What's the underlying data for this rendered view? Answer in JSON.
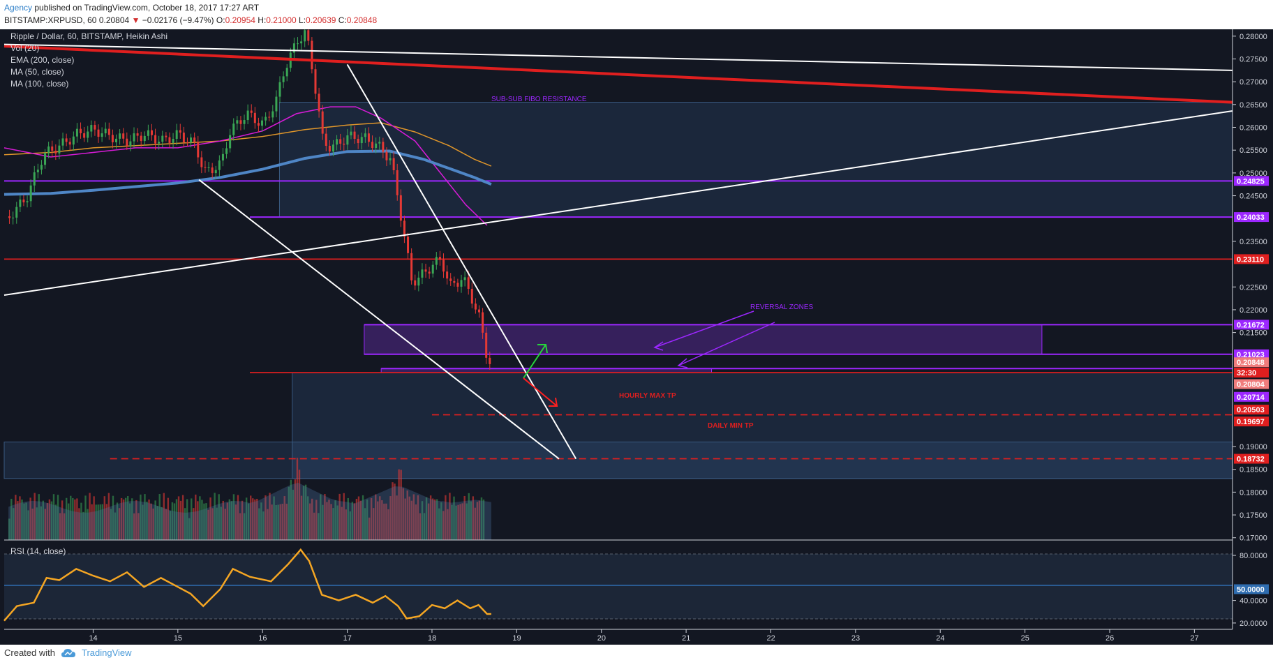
{
  "header": {
    "author": "Agency",
    "published": " published on TradingView.com, October 18, 2017 17:27 ART",
    "symbol": "BITSTAMP:XRPUSD, 60",
    "last": "0.20804",
    "change_arrow": "▼",
    "change": "−0.02176 (−9.47%)",
    "open_label": "O:",
    "open": "0.20954",
    "high_label": "H:",
    "high": "0.21000",
    "low_label": "L:",
    "low": "0.20639",
    "close_label": "C:",
    "close": "0.20848"
  },
  "legend": {
    "title": "Ripple / Dollar, 60, BITSTAMP, Heikin Ashi",
    "vol": "Vol (20)",
    "ema": "EMA (200, close)",
    "ma50": "MA (50, close)",
    "ma100": "MA (100, close)",
    "rsi": "RSI (14, close)"
  },
  "annotations": {
    "fibo": "SUB-SUB FIBO RESISTANCE",
    "reversal": "REVERSAL ZONES",
    "hourly": "HOURLY MAX TP",
    "daily": "DAILY MIN TP"
  },
  "footer": {
    "created": "Created with",
    "brand": "TradingView",
    "tv_icon": "tradingview-cloud-icon"
  },
  "colors": {
    "background": "#131722",
    "purple": "#9c27ff",
    "red": "#e01f1f",
    "white": "#ffffff",
    "ema": "#4f86c6",
    "ma50": "#d81bd8",
    "ma100": "#e0962a",
    "rsi": "#f5a623",
    "up": "#3aa655",
    "down": "#e53935"
  },
  "chart_data": {
    "type": "candlestick",
    "symbol": "XRPUSD",
    "exchange": "BITSTAMP",
    "timeframe": "60",
    "xlabels": [
      "14",
      "15",
      "16",
      "17",
      "18",
      "19",
      "20",
      "21",
      "22",
      "23",
      "24",
      "25",
      "26",
      "27"
    ],
    "price_ticks": [
      "0.28000",
      "0.27500",
      "0.27000",
      "0.26500",
      "0.26000",
      "0.25500",
      "0.25000",
      "0.24500",
      "0.23500",
      "0.22500",
      "0.22000",
      "0.21500",
      "0.19000",
      "0.18500",
      "0.18000",
      "0.17500",
      "0.17000"
    ],
    "price_range": [
      0.1695,
      0.2815
    ],
    "rsi_ticks": [
      "80.0000",
      "40.0000",
      "20.0000"
    ],
    "rsi_range": [
      15,
      93
    ],
    "rsi_mid_label": "50.0000",
    "price_labels": [
      {
        "value": 0.24825,
        "text": "0.24825",
        "color": "purple"
      },
      {
        "value": 0.24033,
        "text": "0.24033",
        "color": "purple"
      },
      {
        "value": 0.2311,
        "text": "0.23110",
        "color": "red"
      },
      {
        "value": 0.21672,
        "text": "0.21672",
        "color": "purple"
      },
      {
        "value": 0.21023,
        "text": "0.21023",
        "color": "purple"
      },
      {
        "value": 0.20848,
        "text": "0.20848",
        "color": "salmon"
      },
      {
        "value": 0.2062,
        "text": "32:30",
        "color": "red"
      },
      {
        "value": 0.20804,
        "text": "0.20804",
        "color": "salmon",
        "slot": 0.2037
      },
      {
        "value": 0.20714,
        "text": "0.20714",
        "color": "purple",
        "slot": 0.2009
      },
      {
        "value": 0.20503,
        "text": "0.20503",
        "color": "red",
        "slot": 0.1981
      },
      {
        "value": 0.19697,
        "text": "0.19697",
        "color": "red",
        "slot": 0.1955
      },
      {
        "value": 0.18732,
        "text": "0.18732",
        "color": "red"
      }
    ],
    "horizontal_levels": [
      {
        "value": 0.24825,
        "color": "purple",
        "from_day": 12.95
      },
      {
        "value": 0.24033,
        "color": "purple",
        "from_day": 15.85
      },
      {
        "value": 0.2311,
        "color": "red",
        "from_day": 12.95
      },
      {
        "value": 0.21672,
        "color": "purple",
        "from_day": 17.2
      },
      {
        "value": 0.21023,
        "color": "purple",
        "from_day": 17.2
      },
      {
        "value": 0.2071,
        "color": "purple",
        "from_day": 17.4
      },
      {
        "value": 0.2062,
        "color": "red",
        "from_day": 15.85
      },
      {
        "value": 0.19697,
        "color": "red_dashed",
        "from_day": 18.0
      },
      {
        "value": 0.18732,
        "color": "red_dashed",
        "from_day": 14.2
      }
    ],
    "trendlines": [
      {
        "color": "red",
        "points": [
          [
            12.95,
            0.2778
          ],
          [
            27.45,
            0.2655
          ]
        ]
      },
      {
        "color": "white",
        "points": [
          [
            12.95,
            0.2782
          ],
          [
            27.45,
            0.2725
          ]
        ]
      },
      {
        "color": "white",
        "points": [
          [
            12.95,
            0.2232
          ],
          [
            27.45,
            0.2636
          ]
        ]
      },
      {
        "color": "white",
        "points": [
          [
            17.0,
            0.2738
          ],
          [
            19.7,
            0.1873
          ]
        ]
      },
      {
        "color": "white",
        "points": [
          [
            15.25,
            0.2485
          ],
          [
            19.5,
            0.1873
          ]
        ]
      }
    ],
    "zones": [
      {
        "color": "blue",
        "from_day": 16.2,
        "to_day": 27.45,
        "top": 0.2655,
        "bottom": 0.2403
      },
      {
        "color": "purple",
        "from_day": 17.2,
        "to_day": 25.2,
        "top": 0.2167,
        "bottom": 0.2102
      },
      {
        "color": "purple",
        "from_day": 17.4,
        "to_day": 21.3,
        "top": 0.2071,
        "bottom": 0.2062
      },
      {
        "color": "blue",
        "from_day": 16.35,
        "to_day": 27.45,
        "top": 0.2062,
        "bottom": 0.183
      },
      {
        "color": "blue",
        "from_day": 12.95,
        "to_day": 27.45,
        "top": 0.191,
        "bottom": 0.183
      }
    ],
    "hourly_path": [
      [
        13.0,
        0.2405
      ],
      [
        13.2,
        0.2445
      ],
      [
        13.4,
        0.254
      ],
      [
        13.6,
        0.256
      ],
      [
        13.8,
        0.2585
      ],
      [
        14.0,
        0.2595
      ],
      [
        14.2,
        0.258
      ],
      [
        14.4,
        0.257
      ],
      [
        14.6,
        0.2585
      ],
      [
        14.8,
        0.257
      ],
      [
        15.0,
        0.2585
      ],
      [
        15.2,
        0.256
      ],
      [
        15.3,
        0.25
      ],
      [
        15.5,
        0.252
      ],
      [
        15.6,
        0.259
      ],
      [
        15.8,
        0.263
      ],
      [
        16.0,
        0.2605
      ],
      [
        16.15,
        0.266
      ],
      [
        16.25,
        0.273
      ],
      [
        16.4,
        0.279
      ],
      [
        16.5,
        0.281
      ],
      [
        16.6,
        0.27
      ],
      [
        16.7,
        0.257
      ],
      [
        16.8,
        0.2555
      ],
      [
        17.0,
        0.258
      ],
      [
        17.2,
        0.2575
      ],
      [
        17.35,
        0.256
      ],
      [
        17.5,
        0.253
      ],
      [
        17.6,
        0.243
      ],
      [
        17.75,
        0.226
      ],
      [
        17.9,
        0.228
      ],
      [
        18.0,
        0.23
      ],
      [
        18.1,
        0.231
      ],
      [
        18.2,
        0.225
      ],
      [
        18.35,
        0.227
      ],
      [
        18.45,
        0.223
      ],
      [
        18.55,
        0.218
      ],
      [
        18.65,
        0.2085
      ]
    ],
    "ema200": [
      [
        12.95,
        0.2453
      ],
      [
        13.5,
        0.2455
      ],
      [
        14.0,
        0.2462
      ],
      [
        14.5,
        0.247
      ],
      [
        15.0,
        0.2478
      ],
      [
        15.5,
        0.249
      ],
      [
        16.0,
        0.2508
      ],
      [
        16.5,
        0.2532
      ],
      [
        17.0,
        0.2547
      ],
      [
        17.5,
        0.2548
      ],
      [
        17.9,
        0.253
      ],
      [
        18.2,
        0.251
      ],
      [
        18.5,
        0.249
      ],
      [
        18.7,
        0.2475
      ]
    ],
    "ma50": [
      [
        12.95,
        0.2555
      ],
      [
        13.5,
        0.2535
      ],
      [
        14.0,
        0.2545
      ],
      [
        14.5,
        0.2555
      ],
      [
        15.0,
        0.2555
      ],
      [
        15.5,
        0.257
      ],
      [
        16.0,
        0.2592
      ],
      [
        16.4,
        0.263
      ],
      [
        16.8,
        0.2645
      ],
      [
        17.1,
        0.2645
      ],
      [
        17.4,
        0.262
      ],
      [
        17.8,
        0.257
      ],
      [
        18.1,
        0.25
      ],
      [
        18.4,
        0.243
      ],
      [
        18.65,
        0.2385
      ]
    ],
    "ma100": [
      [
        12.95,
        0.254
      ],
      [
        13.5,
        0.2545
      ],
      [
        14.0,
        0.2555
      ],
      [
        14.5,
        0.256
      ],
      [
        15.0,
        0.2565
      ],
      [
        15.5,
        0.257
      ],
      [
        16.0,
        0.258
      ],
      [
        16.5,
        0.2595
      ],
      [
        17.0,
        0.2605
      ],
      [
        17.4,
        0.261
      ],
      [
        17.8,
        0.259
      ],
      [
        18.2,
        0.256
      ],
      [
        18.5,
        0.253
      ],
      [
        18.7,
        0.2515
      ]
    ],
    "rsi": [
      [
        12.95,
        22
      ],
      [
        13.1,
        35
      ],
      [
        13.3,
        38
      ],
      [
        13.45,
        60
      ],
      [
        13.6,
        58
      ],
      [
        13.8,
        68
      ],
      [
        14.0,
        62
      ],
      [
        14.2,
        57
      ],
      [
        14.4,
        65
      ],
      [
        14.6,
        52
      ],
      [
        14.8,
        60
      ],
      [
        15.0,
        52
      ],
      [
        15.15,
        46
      ],
      [
        15.3,
        35
      ],
      [
        15.5,
        50
      ],
      [
        15.65,
        68
      ],
      [
        15.85,
        61
      ],
      [
        16.1,
        57
      ],
      [
        16.3,
        72
      ],
      [
        16.45,
        85
      ],
      [
        16.55,
        75
      ],
      [
        16.7,
        45
      ],
      [
        16.9,
        40
      ],
      [
        17.1,
        45
      ],
      [
        17.3,
        38
      ],
      [
        17.45,
        44
      ],
      [
        17.6,
        35
      ],
      [
        17.7,
        24
      ],
      [
        17.85,
        26
      ],
      [
        18.0,
        36
      ],
      [
        18.15,
        33
      ],
      [
        18.3,
        40
      ],
      [
        18.45,
        33
      ],
      [
        18.55,
        36
      ],
      [
        18.65,
        28
      ],
      [
        18.7,
        28
      ]
    ],
    "volume_peaks": [
      [
        16.4,
        0.7
      ],
      [
        17.6,
        0.65
      ],
      [
        18.5,
        0.4
      ]
    ]
  }
}
